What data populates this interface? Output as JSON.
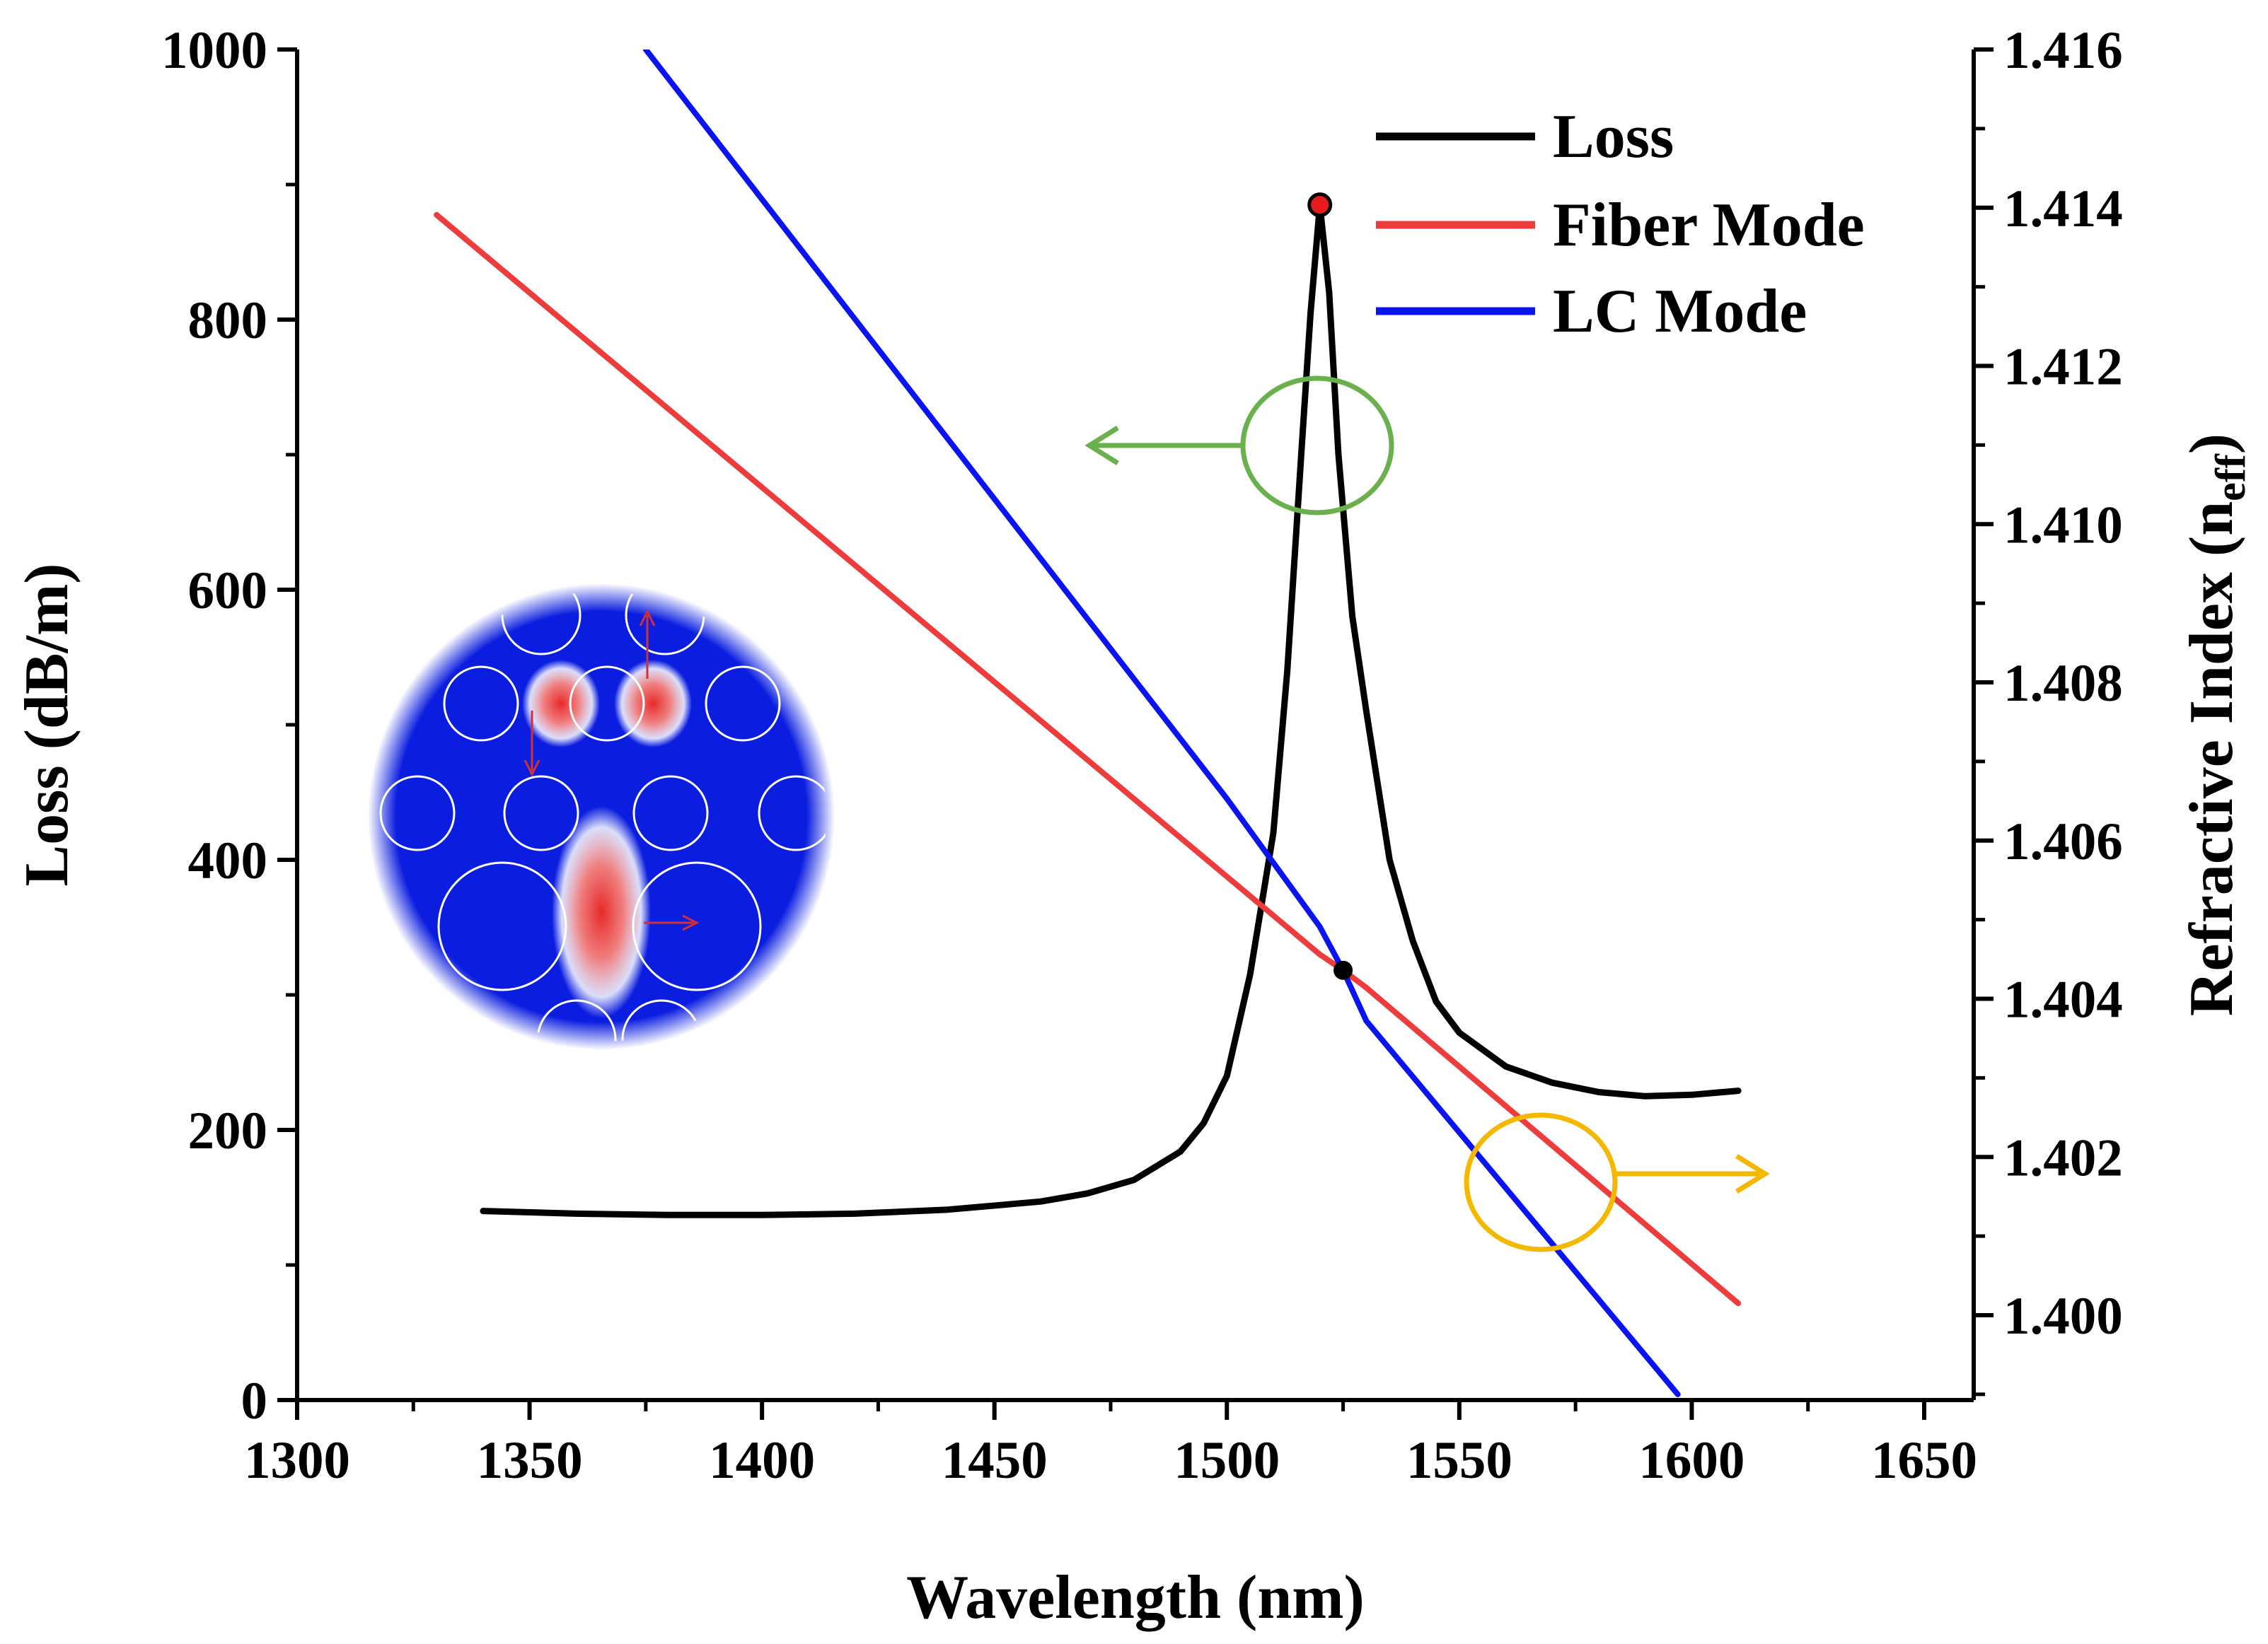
{
  "chart_data": {
    "type": "line",
    "xlabel": "Wavelength (nm)",
    "ylabel_left": "Loss (dB/m)",
    "ylabel_right_main": "Refractive Index (n",
    "ylabel_right_sub": "eff",
    "ylabel_right_end": ")",
    "xlim": [
      1300,
      1660
    ],
    "ylim_left": [
      0,
      1000
    ],
    "ylim_right": [
      1.399,
      1.416
    ],
    "x_ticks": [
      {
        "value": 1300,
        "label": "1300"
      },
      {
        "value": 1350,
        "label": "1350"
      },
      {
        "value": 1400,
        "label": "1400"
      },
      {
        "value": 1450,
        "label": "1450"
      },
      {
        "value": 1500,
        "label": "1500"
      },
      {
        "value": 1550,
        "label": "1550"
      },
      {
        "value": 1600,
        "label": "1600"
      },
      {
        "value": 1650,
        "label": "1650"
      }
    ],
    "y_left_ticks": [
      {
        "value": 0,
        "label": "0"
      },
      {
        "value": 200,
        "label": "200"
      },
      {
        "value": 400,
        "label": "400"
      },
      {
        "value": 600,
        "label": "600"
      },
      {
        "value": 800,
        "label": "800"
      },
      {
        "value": 1000,
        "label": "1000"
      }
    ],
    "y_right_ticks": [
      {
        "value": 1.4,
        "label": "1.400"
      },
      {
        "value": 1.402,
        "label": "1.402"
      },
      {
        "value": 1.404,
        "label": "1.404"
      },
      {
        "value": 1.406,
        "label": "1.406"
      },
      {
        "value": 1.408,
        "label": "1.408"
      },
      {
        "value": 1.41,
        "label": "1.410"
      },
      {
        "value": 1.412,
        "label": "1.412"
      },
      {
        "value": 1.414,
        "label": "1.414"
      },
      {
        "value": 1.416,
        "label": "1.416"
      }
    ],
    "series": [
      {
        "name": "Loss",
        "axis": "left",
        "color": "#000000",
        "x": [
          1340,
          1360,
          1380,
          1400,
          1420,
          1440,
          1460,
          1470,
          1480,
          1490,
          1495,
          1500,
          1505,
          1510,
          1513,
          1516,
          1518,
          1520,
          1522,
          1524,
          1527,
          1530,
          1535,
          1540,
          1545,
          1550,
          1560,
          1570,
          1580,
          1590,
          1600,
          1610
        ],
        "values": [
          140,
          138,
          137,
          137,
          138,
          141,
          147,
          153,
          163,
          184,
          205,
          240,
          315,
          420,
          540,
          700,
          805,
          885,
          820,
          700,
          580,
          510,
          400,
          340,
          295,
          272,
          247,
          235,
          228,
          225,
          226,
          229
        ]
      },
      {
        "name": "Fiber Mode",
        "axis": "right",
        "color": "#ee3b3b",
        "x": [
          1330,
          1520,
          1525,
          1530,
          1610
        ],
        "values": [
          1.41391,
          1.40456,
          1.40436,
          1.40414,
          1.40015
        ]
      },
      {
        "name": "LC Mode",
        "axis": "right",
        "color": "#0a14f0",
        "x": [
          1375,
          1500,
          1520,
          1525,
          1530,
          1597
        ],
        "values": [
          1.416,
          1.40653,
          1.40491,
          1.40436,
          1.40372,
          1.399
        ]
      }
    ],
    "markers": [
      {
        "name": "loss-peak-marker",
        "x": 1520,
        "y": 885,
        "axis": "left",
        "color": "#e81c1c"
      },
      {
        "name": "crossing-marker",
        "x": 1525,
        "y": 1.40436,
        "axis": "right",
        "color": "#000000"
      }
    ],
    "legend": {
      "position": "top-right",
      "entries": [
        {
          "label": "Loss",
          "color": "#000000"
        },
        {
          "label": "Fiber Mode",
          "color": "#ee3b3b"
        },
        {
          "label": "LC Mode",
          "color": "#0a14f0"
        }
      ]
    },
    "annotations": [
      {
        "name": "loss-axis-indicator",
        "ellipse_color": "#6ab04c",
        "arrow_direction": "left"
      },
      {
        "name": "index-axis-indicator",
        "ellipse_color": "#f5b800",
        "arrow_direction": "right"
      }
    ],
    "inset": {
      "name": "mode-field-inset",
      "description_color": "#0a14f0"
    }
  }
}
